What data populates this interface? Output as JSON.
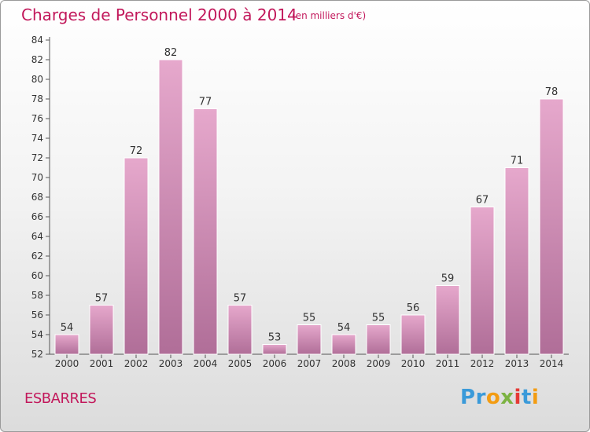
{
  "header": {
    "title": "Charges de Personnel 2000 à 2014",
    "subtitle": "(en milliers d'€)"
  },
  "footer": {
    "commune": "ESBARRES",
    "logo_text": "Proxiti"
  },
  "colors": {
    "title": "#c2185b",
    "bar_top": "#e6a8cc",
    "bar_bottom": "#b06e98",
    "logo": [
      "#3a9ad9",
      "#3a9ad9",
      "#f39c12",
      "#7cb342",
      "#e53935",
      "#3a9ad9",
      "#f39c12"
    ]
  },
  "chart_data": {
    "type": "bar",
    "title": "Charges de Personnel 2000 à 2014",
    "subtitle": "(en milliers d'€)",
    "xlabel": "",
    "ylabel": "",
    "categories": [
      "2000",
      "2001",
      "2002",
      "2003",
      "2004",
      "2005",
      "2006",
      "2007",
      "2008",
      "2009",
      "2010",
      "2011",
      "2012",
      "2013",
      "2014"
    ],
    "values": [
      54,
      57,
      72,
      82,
      77,
      57,
      53,
      55,
      54,
      55,
      56,
      59,
      67,
      71,
      78
    ],
    "ylim": [
      52,
      84
    ],
    "yticks": [
      52,
      54,
      56,
      58,
      60,
      62,
      64,
      66,
      68,
      70,
      72,
      74,
      76,
      78,
      80,
      82,
      84
    ],
    "grid": false,
    "legend": "none",
    "data_labels": true
  }
}
